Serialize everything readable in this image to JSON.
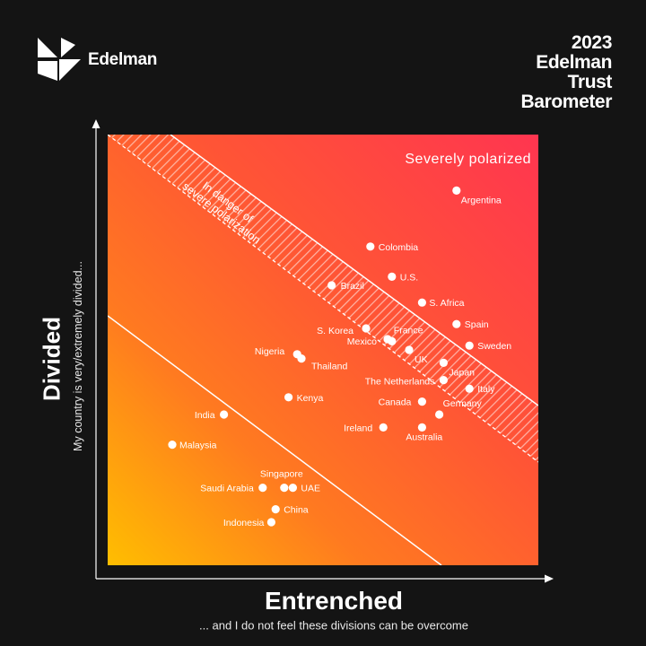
{
  "brand": {
    "logo_text": "Edelman"
  },
  "report_title": [
    "2023",
    "Edelman",
    "Trust",
    "Barometer"
  ],
  "chart_data": {
    "type": "scatter",
    "title": "",
    "ylabel": "Divided",
    "ylabel_sub": "My country is very/extremely divided...",
    "xlabel": "Entrenched",
    "xlabel_sub": "... and I do not feel these divisions can be overcome",
    "xlim": [
      0,
      100
    ],
    "ylim": [
      0,
      100
    ],
    "regions": [
      {
        "label": "Severely polarized"
      },
      {
        "label": "In danger of severe polarization"
      }
    ],
    "points": [
      {
        "name": "Argentina",
        "x": 81,
        "y": 87
      },
      {
        "name": "Colombia",
        "x": 61,
        "y": 74
      },
      {
        "name": "U.S.",
        "x": 66,
        "y": 67
      },
      {
        "name": "Brazil",
        "x": 52,
        "y": 65
      },
      {
        "name": "S. Africa",
        "x": 73,
        "y": 61
      },
      {
        "name": "Spain",
        "x": 81,
        "y": 56
      },
      {
        "name": "S. Korea",
        "x": 60,
        "y": 55
      },
      {
        "name": "France",
        "x": 66,
        "y": 52
      },
      {
        "name": "Mexico",
        "x": 65,
        "y": 52.5
      },
      {
        "name": "Sweden",
        "x": 84,
        "y": 51
      },
      {
        "name": "UK",
        "x": 70,
        "y": 50
      },
      {
        "name": "Nigeria",
        "x": 44,
        "y": 49
      },
      {
        "name": "Thailand",
        "x": 45,
        "y": 48
      },
      {
        "name": "Japan",
        "x": 78,
        "y": 47
      },
      {
        "name": "The Netherlands",
        "x": 78,
        "y": 43
      },
      {
        "name": "Italy",
        "x": 84,
        "y": 41
      },
      {
        "name": "Kenya",
        "x": 42,
        "y": 39
      },
      {
        "name": "Canada",
        "x": 73,
        "y": 38
      },
      {
        "name": "Germany",
        "x": 77,
        "y": 35
      },
      {
        "name": "India",
        "x": 27,
        "y": 35
      },
      {
        "name": "Ireland",
        "x": 64,
        "y": 32
      },
      {
        "name": "Australia",
        "x": 73,
        "y": 32
      },
      {
        "name": "Malaysia",
        "x": 15,
        "y": 28
      },
      {
        "name": "Singapore",
        "x": 41,
        "y": 18
      },
      {
        "name": "Saudi Arabia",
        "x": 36,
        "y": 18
      },
      {
        "name": "UAE",
        "x": 43,
        "y": 18
      },
      {
        "name": "China",
        "x": 39,
        "y": 13
      },
      {
        "name": "Indonesia",
        "x": 38,
        "y": 10
      }
    ]
  }
}
